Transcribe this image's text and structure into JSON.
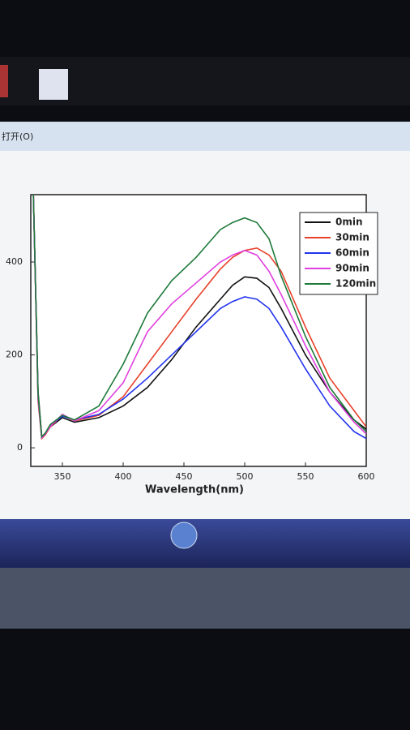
{
  "menu": "打开(O)",
  "chart_data": {
    "type": "line",
    "x_label": "Wavelength(nm)",
    "x": [
      326,
      330,
      333,
      336,
      340,
      350,
      360,
      380,
      400,
      420,
      440,
      460,
      480,
      490,
      500,
      510,
      520,
      530,
      550,
      570,
      590,
      600
    ],
    "series": [
      {
        "name": "0min",
        "color": "#111111",
        "values": [
          560,
          120,
          25,
          30,
          45,
          65,
          55,
          65,
          90,
          130,
          190,
          260,
          320,
          350,
          368,
          365,
          345,
          300,
          200,
          120,
          60,
          40
        ]
      },
      {
        "name": "30min",
        "color": "#e8402a",
        "values": [
          560,
          100,
          20,
          28,
          45,
          70,
          58,
          70,
          110,
          180,
          250,
          320,
          385,
          410,
          425,
          430,
          415,
          380,
          260,
          150,
          80,
          45
        ]
      },
      {
        "name": "60min",
        "color": "#2233ee",
        "values": [
          560,
          110,
          22,
          30,
          48,
          68,
          60,
          72,
          105,
          150,
          200,
          250,
          300,
          315,
          325,
          320,
          300,
          260,
          170,
          90,
          35,
          20
        ]
      },
      {
        "name": "90min",
        "color": "#e040e0",
        "values": [
          560,
          105,
          22,
          30,
          46,
          72,
          58,
          80,
          140,
          250,
          310,
          355,
          400,
          415,
          425,
          415,
          380,
          330,
          220,
          120,
          55,
          30
        ]
      },
      {
        "name": "120min",
        "color": "#1e7a3a",
        "values": [
          560,
          115,
          24,
          32,
          50,
          70,
          60,
          90,
          180,
          290,
          360,
          410,
          470,
          485,
          495,
          485,
          450,
          370,
          240,
          130,
          60,
          35
        ]
      }
    ],
    "xlim": [
      324,
      600
    ],
    "ylim": [
      -40,
      545
    ],
    "xticks": [
      350,
      400,
      450,
      500,
      550,
      600
    ],
    "yticks": [
      0,
      200,
      400
    ]
  }
}
